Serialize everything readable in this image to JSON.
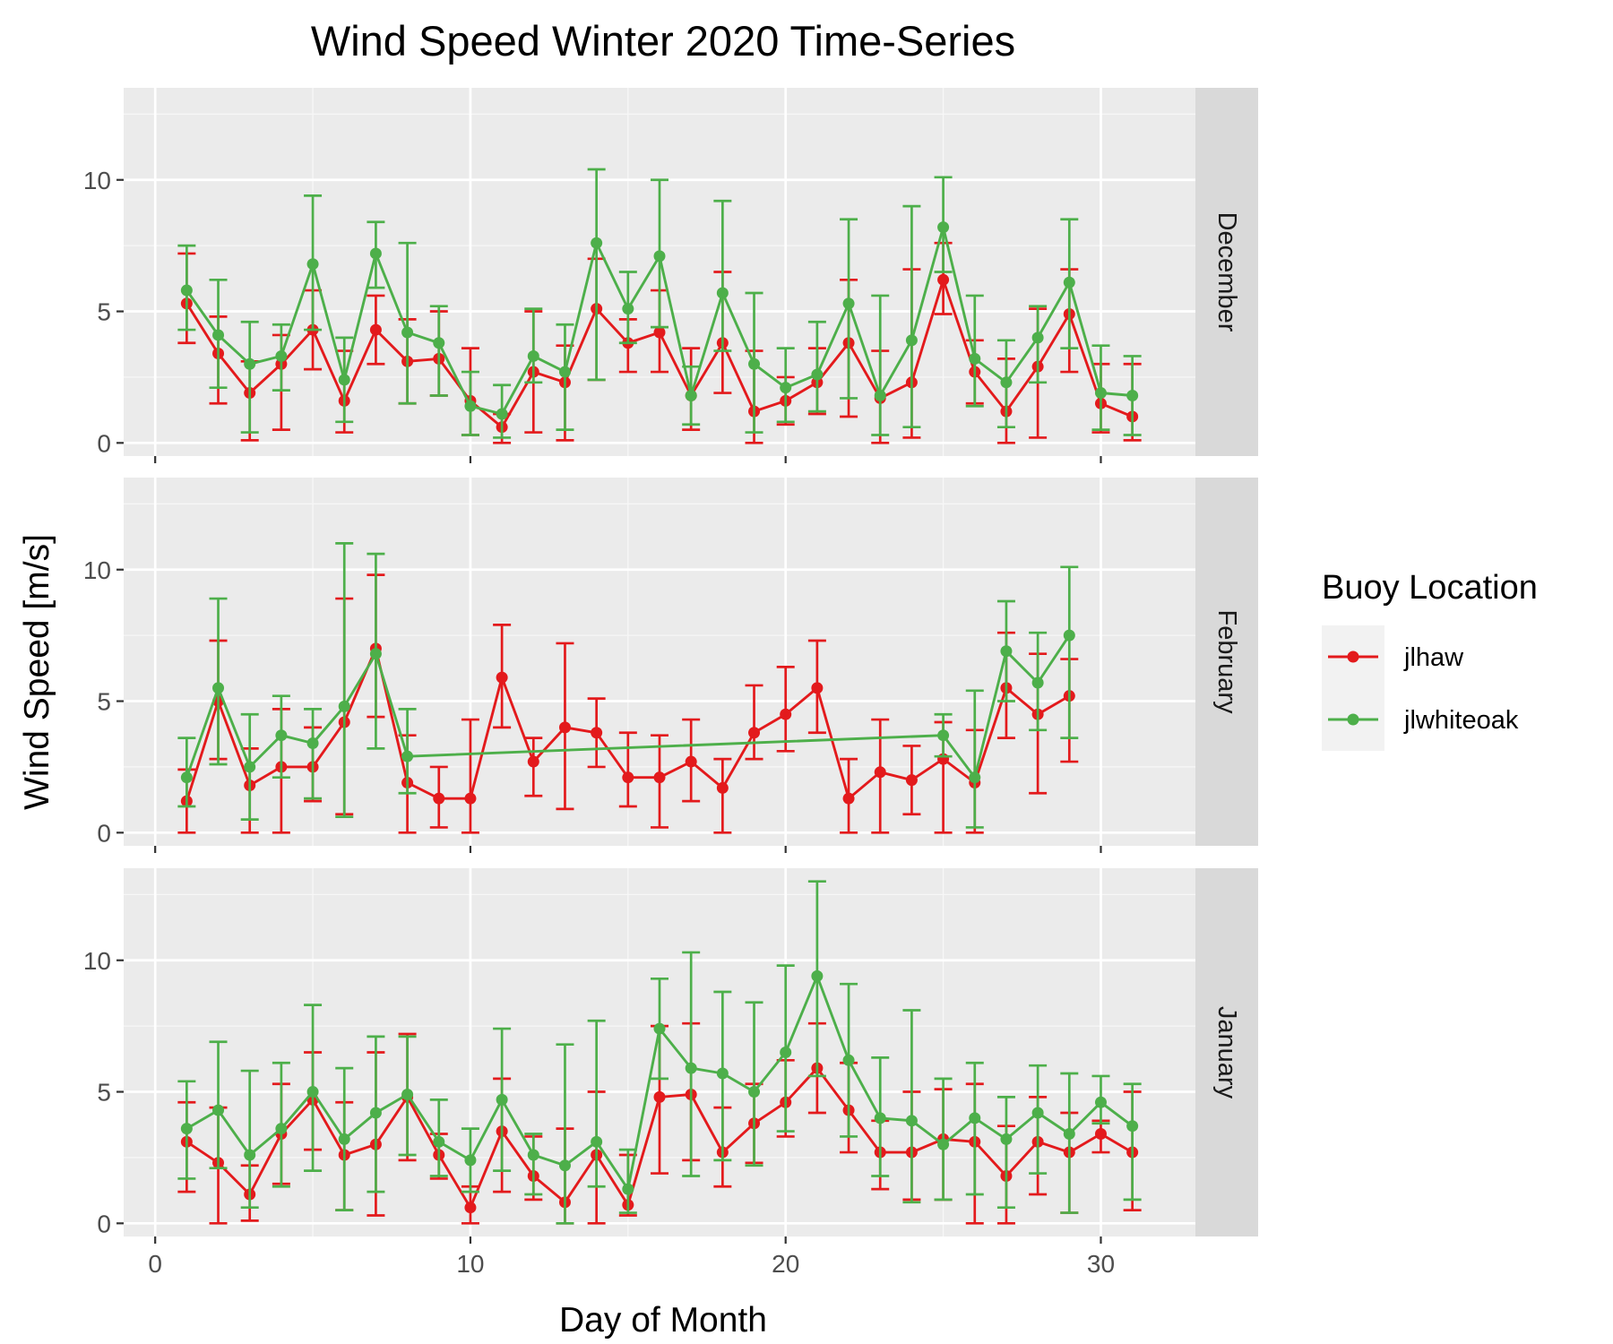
{
  "chart_data": {
    "type": "line",
    "title": "Wind Speed Winter 2020 Time-Series",
    "xlabel": "Day of Month",
    "ylabel": "Wind Speed [m/s]",
    "xlim": [
      -1,
      33
    ],
    "ylim": [
      -0.5,
      13.5
    ],
    "xticks": [
      0,
      10,
      20,
      30
    ],
    "yticks": [
      0,
      5,
      10
    ],
    "grid": true,
    "error_bars": true,
    "legend": {
      "title": "Buoy Location",
      "position": "right",
      "entries": [
        "jlhaw",
        "jlwhiteoak"
      ]
    },
    "colors": {
      "jlhaw": "#e31a1c",
      "jlwhiteoak": "#4daf4a"
    },
    "panels": [
      {
        "label": "December",
        "series": [
          {
            "name": "jlhaw",
            "x": [
              1,
              2,
              3,
              4,
              5,
              6,
              7,
              8,
              9,
              10,
              11,
              12,
              13,
              14,
              15,
              16,
              17,
              18,
              19,
              20,
              21,
              22,
              23,
              24,
              25,
              26,
              27,
              28,
              29,
              30,
              31
            ],
            "y": [
              5.3,
              3.4,
              1.9,
              3.0,
              4.3,
              1.6,
              4.3,
              3.1,
              3.2,
              1.6,
              0.6,
              2.7,
              2.3,
              5.1,
              3.8,
              4.2,
              1.8,
              3.8,
              1.2,
              1.6,
              2.3,
              3.8,
              1.7,
              2.3,
              6.2,
              2.7,
              1.2,
              2.9,
              4.9,
              1.5,
              1.0
            ],
            "ymin": [
              3.8,
              1.5,
              0.1,
              0.5,
              2.8,
              0.4,
              3.0,
              1.5,
              1.8,
              0.3,
              0.0,
              0.4,
              0.1,
              2.4,
              2.7,
              2.7,
              0.5,
              1.9,
              0.0,
              0.7,
              1.1,
              1.0,
              0.0,
              0.2,
              4.9,
              1.5,
              0.0,
              0.2,
              2.7,
              0.4,
              0.1
            ],
            "ymax": [
              7.2,
              4.8,
              3.1,
              4.1,
              5.8,
              3.5,
              5.6,
              4.7,
              5.0,
              3.6,
              1.1,
              5.0,
              3.7,
              7.0,
              4.7,
              5.8,
              3.6,
              6.5,
              3.5,
              2.5,
              3.6,
              6.2,
              3.5,
              6.6,
              7.6,
              3.9,
              3.2,
              5.1,
              6.6,
              3.0,
              3.0
            ]
          },
          {
            "name": "jlwhiteoak",
            "x": [
              1,
              2,
              3,
              4,
              5,
              6,
              7,
              8,
              9,
              10,
              11,
              12,
              13,
              14,
              15,
              16,
              17,
              18,
              19,
              20,
              21,
              22,
              23,
              24,
              25,
              26,
              27,
              28,
              29,
              30,
              31
            ],
            "y": [
              5.8,
              4.1,
              3.0,
              3.3,
              6.8,
              2.4,
              7.2,
              4.2,
              3.8,
              1.4,
              1.1,
              3.3,
              2.7,
              7.6,
              5.1,
              7.1,
              1.8,
              5.7,
              3.0,
              2.1,
              2.6,
              5.3,
              1.8,
              3.9,
              8.2,
              3.2,
              2.3,
              4.0,
              6.1,
              1.9,
              1.8
            ],
            "ymin": [
              4.3,
              2.1,
              0.4,
              2.0,
              4.3,
              0.8,
              5.9,
              1.5,
              1.8,
              0.3,
              0.2,
              2.3,
              0.5,
              2.4,
              3.8,
              4.4,
              0.7,
              3.5,
              0.4,
              0.8,
              1.2,
              1.7,
              0.3,
              0.6,
              6.5,
              1.4,
              0.6,
              2.3,
              3.6,
              0.5,
              0.3
            ],
            "ymax": [
              7.5,
              6.2,
              4.6,
              4.5,
              9.4,
              4.0,
              8.4,
              7.6,
              5.2,
              2.7,
              2.2,
              5.1,
              4.5,
              10.4,
              6.5,
              10.0,
              2.9,
              9.2,
              5.7,
              3.6,
              4.6,
              8.5,
              5.6,
              9.0,
              10.1,
              5.6,
              3.9,
              5.2,
              8.5,
              3.7,
              3.3
            ]
          }
        ]
      },
      {
        "label": "February",
        "series": [
          {
            "name": "jlhaw",
            "x": [
              1,
              2,
              3,
              4,
              5,
              6,
              7,
              8,
              9,
              10,
              11,
              12,
              13,
              14,
              15,
              16,
              17,
              18,
              19,
              20,
              21,
              22,
              23,
              24,
              25,
              26,
              27,
              28,
              29
            ],
            "y": [
              1.2,
              5.0,
              1.8,
              2.5,
              2.5,
              4.2,
              7.0,
              1.9,
              1.3,
              1.3,
              5.9,
              2.7,
              4.0,
              3.8,
              2.1,
              2.1,
              2.7,
              1.7,
              3.8,
              4.5,
              5.5,
              1.3,
              2.3,
              2.0,
              2.8,
              1.9,
              5.5,
              4.5,
              5.2
            ],
            "ymin": [
              0.0,
              2.8,
              0.0,
              0.0,
              1.2,
              0.7,
              4.4,
              0.0,
              0.2,
              0.0,
              4.0,
              1.4,
              0.9,
              2.5,
              1.0,
              0.2,
              1.2,
              0.0,
              2.8,
              3.1,
              3.8,
              0.0,
              0.0,
              0.7,
              0.0,
              0.0,
              3.6,
              1.5,
              2.7
            ],
            "ymax": [
              2.4,
              7.3,
              3.2,
              4.7,
              4.0,
              8.9,
              9.8,
              3.7,
              2.5,
              4.3,
              7.9,
              3.6,
              7.2,
              5.1,
              3.8,
              3.7,
              4.3,
              2.8,
              5.6,
              6.3,
              7.3,
              2.8,
              4.3,
              3.3,
              4.2,
              3.9,
              7.6,
              6.8,
              6.6
            ]
          },
          {
            "name": "jlwhiteoak",
            "x": [
              1,
              2,
              3,
              4,
              5,
              6,
              7,
              8,
              25,
              26,
              27,
              28,
              29
            ],
            "y": [
              2.1,
              5.5,
              2.5,
              3.7,
              3.4,
              4.8,
              6.8,
              2.9,
              3.7,
              2.1,
              6.9,
              5.7,
              7.5
            ],
            "ymin": [
              1.0,
              2.6,
              0.5,
              2.1,
              1.3,
              0.6,
              3.2,
              1.5,
              2.9,
              0.2,
              5.0,
              3.9,
              3.6
            ],
            "ymax": [
              3.6,
              8.9,
              4.5,
              5.2,
              4.7,
              11.0,
              10.6,
              4.7,
              4.5,
              5.4,
              8.8,
              7.6,
              10.1
            ]
          }
        ]
      },
      {
        "label": "January",
        "series": [
          {
            "name": "jlhaw",
            "x": [
              1,
              2,
              3,
              4,
              5,
              6,
              7,
              8,
              9,
              10,
              11,
              12,
              13,
              14,
              15,
              16,
              17,
              18,
              19,
              20,
              21,
              22,
              23,
              24,
              25,
              26,
              27,
              28,
              29,
              30,
              31
            ],
            "y": [
              3.1,
              2.3,
              1.1,
              3.4,
              4.7,
              2.6,
              3.0,
              4.8,
              2.6,
              0.6,
              3.5,
              1.8,
              0.8,
              2.6,
              0.7,
              4.8,
              4.9,
              2.7,
              3.8,
              4.6,
              5.9,
              4.3,
              2.7,
              2.7,
              3.2,
              3.1,
              1.8,
              3.1,
              2.7,
              3.4,
              2.7
            ],
            "ymin": [
              1.2,
              0.0,
              0.1,
              1.5,
              2.8,
              0.5,
              0.3,
              2.4,
              1.7,
              0.0,
              1.2,
              0.9,
              0.0,
              0.0,
              0.3,
              1.9,
              2.4,
              1.4,
              2.3,
              3.3,
              4.2,
              2.7,
              1.3,
              0.9,
              0.9,
              0.0,
              0.0,
              1.1,
              0.4,
              2.7,
              0.5
            ],
            "ymax": [
              4.6,
              4.4,
              2.2,
              5.3,
              6.5,
              4.6,
              6.5,
              7.2,
              3.4,
              1.4,
              5.5,
              3.3,
              3.6,
              5.0,
              2.6,
              7.5,
              7.6,
              4.4,
              5.3,
              6.2,
              7.6,
              6.1,
              3.9,
              5.0,
              5.1,
              5.3,
              3.7,
              4.8,
              4.2,
              3.9,
              5.0
            ]
          },
          {
            "name": "jlwhiteoak",
            "x": [
              1,
              2,
              3,
              4,
              5,
              6,
              7,
              8,
              9,
              10,
              11,
              12,
              13,
              14,
              15,
              16,
              17,
              18,
              19,
              20,
              21,
              22,
              23,
              24,
              25,
              26,
              27,
              28,
              29,
              30,
              31
            ],
            "y": [
              3.6,
              4.3,
              2.6,
              3.6,
              5.0,
              3.2,
              4.2,
              4.9,
              3.1,
              2.4,
              4.7,
              2.6,
              2.2,
              3.1,
              1.3,
              7.4,
              5.9,
              5.7,
              5.0,
              6.5,
              9.4,
              6.2,
              4.0,
              3.9,
              3.0,
              4.0,
              3.2,
              4.2,
              3.4,
              4.6,
              3.7
            ],
            "ymin": [
              1.7,
              2.1,
              0.6,
              1.4,
              2.0,
              0.5,
              1.2,
              2.6,
              1.8,
              1.2,
              2.0,
              1.1,
              0.0,
              1.4,
              0.4,
              5.5,
              1.8,
              2.4,
              2.2,
              3.5,
              5.6,
              3.3,
              1.8,
              0.8,
              0.9,
              1.1,
              0.6,
              1.9,
              0.4,
              3.8,
              0.9
            ],
            "ymax": [
              5.4,
              6.9,
              5.8,
              6.1,
              8.3,
              5.9,
              7.1,
              7.1,
              4.7,
              3.6,
              7.4,
              3.4,
              6.8,
              7.7,
              2.8,
              9.3,
              10.3,
              8.8,
              8.4,
              9.8,
              13.0,
              9.1,
              6.3,
              8.1,
              5.5,
              6.1,
              4.8,
              6.0,
              5.7,
              5.6,
              5.3
            ]
          }
        ]
      }
    ]
  }
}
